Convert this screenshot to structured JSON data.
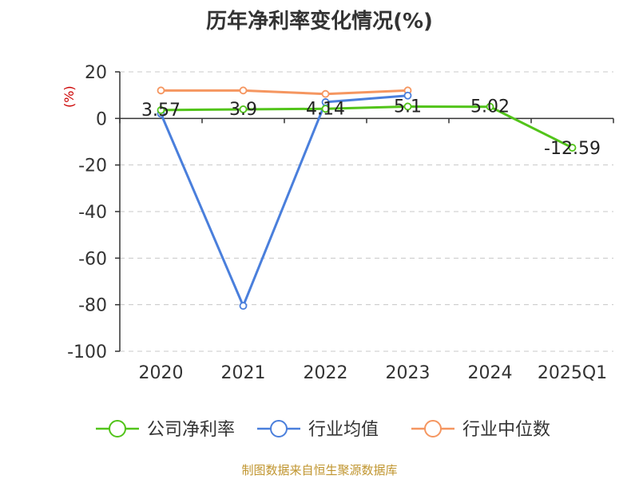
{
  "chart_data": {
    "type": "line",
    "title": "历年净利率变化情况(%)",
    "ylabel": "(%)",
    "categories": [
      "2020",
      "2021",
      "2022",
      "2023",
      "2024",
      "2025Q1"
    ],
    "ylim": [
      -100,
      20
    ],
    "yticks": [
      20,
      0,
      -20,
      -40,
      -60,
      -80,
      -100
    ],
    "grid": true,
    "legend_position": "bottom",
    "series": [
      {
        "name": "公司净利率",
        "color": "#52c41a",
        "values": [
          3.57,
          3.9,
          4.14,
          5.1,
          5.02,
          -12.59
        ],
        "labels": [
          "3.57",
          "3.9",
          "4.14",
          "5.1",
          "5.02",
          "-12.59"
        ]
      },
      {
        "name": "行业均值",
        "color": "#4a7fdc",
        "values": [
          2,
          -80.5,
          7,
          9.8,
          null,
          null
        ]
      },
      {
        "name": "行业中位数",
        "color": "#f59660",
        "values": [
          12,
          12,
          10.5,
          12,
          null,
          null
        ]
      }
    ]
  },
  "footer": {
    "source": "制图数据来自恒生聚源数据库"
  }
}
